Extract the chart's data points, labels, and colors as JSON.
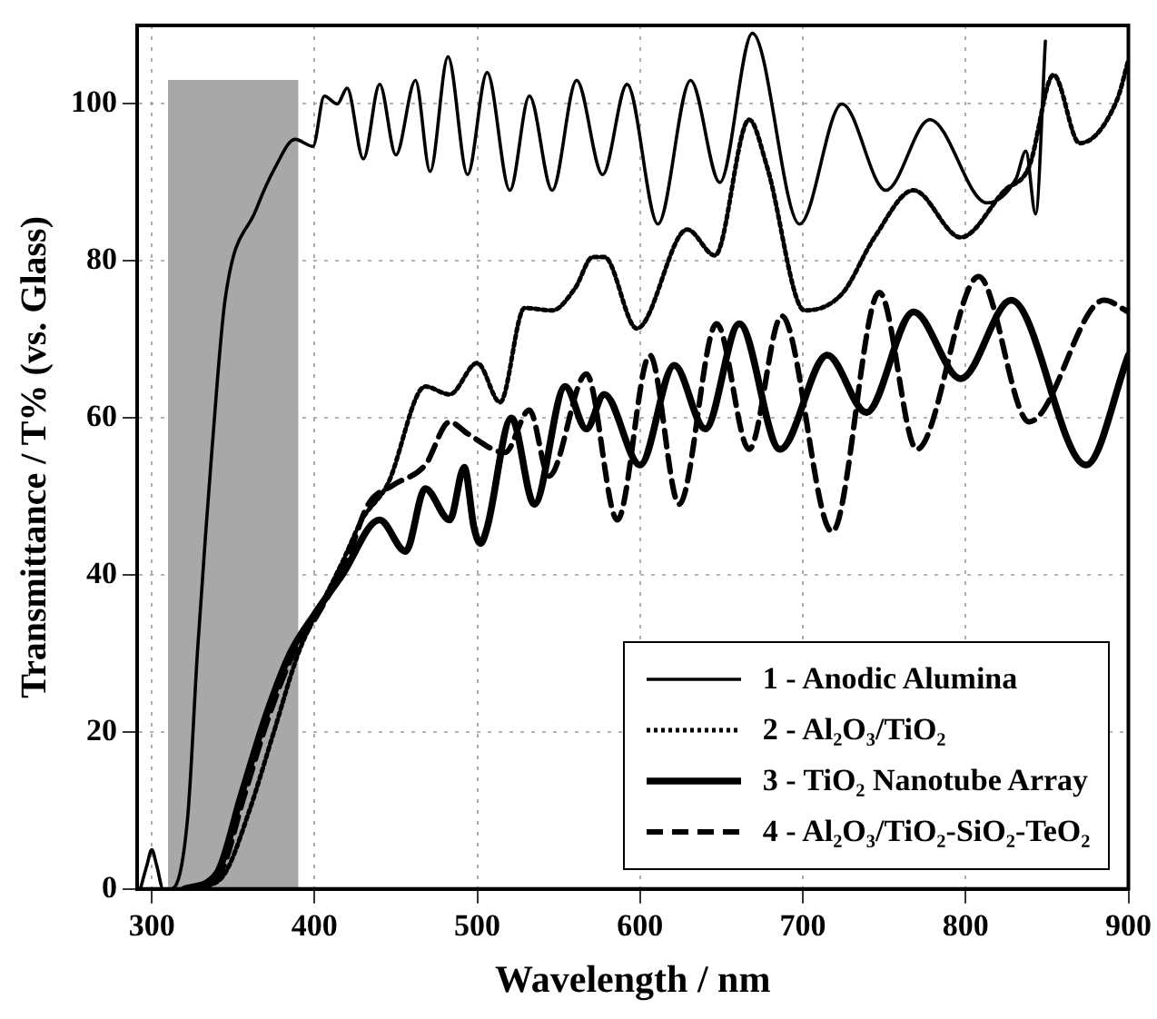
{
  "chart_data": {
    "type": "line",
    "xlabel": "Wavelength / nm",
    "ylabel": "Transmittance / T% (vs. Glass)",
    "xlim": [
      291,
      900
    ],
    "xticks": [
      300,
      400,
      500,
      600,
      700,
      800,
      900
    ],
    "ylim": [
      0,
      110
    ],
    "yticks": [
      0,
      20,
      40,
      60,
      80,
      100
    ],
    "grid": true,
    "legend": "bottom right",
    "marker": "none",
    "bands": [
      {
        "axis": "x",
        "from": 310,
        "to": 390,
        "color": "#a8a8a8"
      }
    ],
    "series": [
      {
        "name": "1 - Anodic Alumina",
        "color": "#000000",
        "line_style": "solid",
        "x": [
          293,
          297,
          300,
          303,
          307,
          312,
          322,
          328,
          333,
          337,
          345,
          364,
          376,
          388,
          399,
          406,
          414,
          420,
          430,
          440,
          450,
          462,
          471,
          482,
          494,
          506,
          520,
          532,
          546,
          561,
          577,
          592,
          611,
          631,
          649,
          669,
          698,
          724,
          751,
          778,
          813,
          831,
          837,
          843,
          849
        ],
        "values": [
          0,
          3,
          5,
          3,
          0,
          0,
          9,
          30,
          45,
          56,
          75,
          86.5,
          92,
          95.5,
          94.6,
          101,
          100,
          102,
          93,
          102.5,
          93.5,
          103,
          91.4,
          106,
          91,
          104,
          89,
          101,
          89,
          103,
          91,
          102.5,
          84.7,
          103,
          90,
          109,
          84.7,
          100,
          89,
          98,
          87.4,
          90.5,
          94,
          86,
          108
        ]
      },
      {
        "name": "2 - Al₂O₃/TiO₂",
        "color": "#000000",
        "line_style": "dotted",
        "x": [
          330,
          345,
          360,
          375,
          390,
          406,
          417,
          429,
          445,
          468,
          483,
          500,
          514,
          529,
          546,
          560,
          571,
          578,
          598,
          629,
          646,
          667,
          678,
          701,
          724,
          744,
          768,
          797,
          824,
          839,
          854,
          870,
          893,
          900
        ],
        "values": [
          0,
          2,
          10,
          20,
          30,
          37,
          41.6,
          47,
          51.6,
          64,
          63,
          67,
          62,
          74,
          73.7,
          76.5,
          80.5,
          80.5,
          71.4,
          84,
          80.7,
          98,
          92,
          73.7,
          75.8,
          83,
          89,
          83,
          89,
          92,
          103.7,
          95,
          100.5,
          105.6
        ]
      },
      {
        "name": "3 - TiO₂ Nanotube Array",
        "color": "#000000",
        "line_style": "solid",
        "x": [
          320,
          340,
          355,
          370,
          385,
          400,
          417,
          440,
          456,
          468,
          483,
          492,
          498,
          502,
          506,
          521,
          535,
          554,
          567,
          578,
          600,
          621,
          640,
          661,
          686,
          715,
          739,
          768,
          797,
          828,
          874,
          900
        ],
        "values": [
          0,
          2,
          12,
          22,
          30,
          35,
          40,
          47,
          43,
          51,
          47,
          53.7,
          46,
          44,
          46,
          60,
          49,
          64,
          58.6,
          63,
          54,
          66.7,
          58.6,
          72,
          56,
          68,
          60.7,
          73.5,
          65,
          75,
          54,
          68
        ]
      },
      {
        "name": "4 - Al₂O₃/TiO₂-SiO₂-TeO₂",
        "color": "#000000",
        "line_style": "dashed",
        "x": [
          325,
          342,
          357,
          372,
          387,
          402,
          420,
          433,
          448,
          468,
          483,
          494,
          517,
          532,
          544,
          567,
          586,
          606,
          624,
          647,
          667,
          687,
          718,
          747,
          770,
          808,
          839,
          885,
          900
        ],
        "values": [
          0,
          2,
          12,
          22,
          30,
          35,
          42,
          49,
          51.4,
          54,
          59.5,
          58,
          55.6,
          61,
          52.6,
          65.6,
          47,
          68,
          49,
          72,
          56,
          73,
          45.5,
          76,
          56,
          78,
          59.5,
          75,
          73.5
        ]
      }
    ]
  }
}
